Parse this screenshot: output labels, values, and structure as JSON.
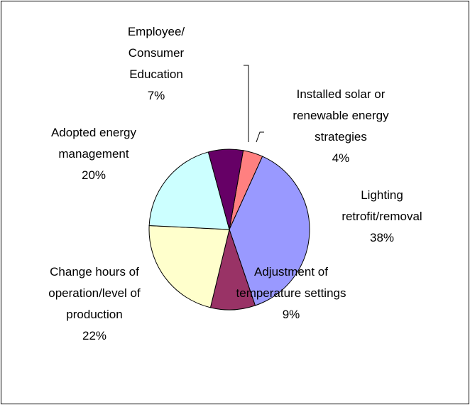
{
  "chart_data": {
    "type": "pie",
    "categories": [
      "Installed solar or renewable energy strategies",
      "Lighting retrofit/removal",
      "Adjustment of temperature settings",
      "Change hours of operation/level of production",
      "Adopted energy management",
      "Employee/ Consumer Education"
    ],
    "values": [
      4,
      38,
      9,
      22,
      20,
      7
    ],
    "value_labels": [
      "4%",
      "38%",
      "9%",
      "22%",
      "20%",
      "7%"
    ],
    "colors": [
      "#ff8080",
      "#9999ff",
      "#993366",
      "#ffffcc",
      "#ccffff",
      "#660066"
    ]
  }
}
